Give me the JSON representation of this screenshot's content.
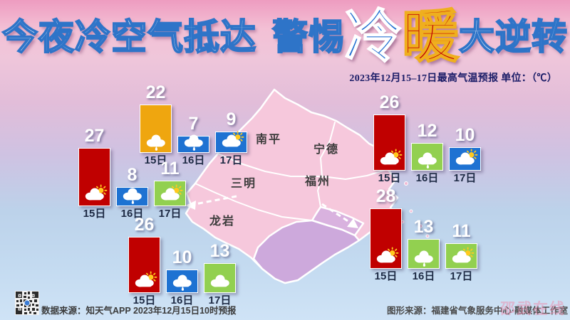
{
  "title": {
    "part1": "今夜冷空气抵达",
    "part2": "警惕",
    "part3": "冷",
    "part4": "暖",
    "part5": "大逆转"
  },
  "subtitle": "2023年12月15–17日最高气温预报  单位：（℃）",
  "map": {
    "region_labels": [
      "南平",
      "宁德",
      "三明",
      "福州",
      "龙岩"
    ]
  },
  "chart_data": [
    {
      "type": "bar",
      "position": "upper-left",
      "categories": [
        "15日",
        "16日",
        "17日"
      ],
      "values": [
        22,
        7,
        9
      ],
      "weather_icons": [
        "rain",
        "rain",
        "partly-sunny"
      ],
      "bar_colors": [
        "#efa60f",
        "#1e72d2",
        "#1e72d2"
      ],
      "unit": "℃"
    },
    {
      "type": "bar",
      "position": "mid-left",
      "categories": [
        "15日",
        "16日",
        "17日"
      ],
      "values": [
        27,
        8,
        11
      ],
      "weather_icons": [
        "partly-sunny",
        "rain",
        "partly-sunny"
      ],
      "bar_colors": [
        "#c00000",
        "#1e72d2",
        "#92d050"
      ],
      "unit": "℃"
    },
    {
      "type": "bar",
      "position": "lower-left",
      "categories": [
        "15日",
        "16日",
        "17日"
      ],
      "values": [
        26,
        10,
        13
      ],
      "weather_icons": [
        "partly-sunny",
        "rain",
        "cloudy"
      ],
      "bar_colors": [
        "#c00000",
        "#1e72d2",
        "#92d050"
      ],
      "unit": "℃"
    },
    {
      "type": "bar",
      "position": "upper-right",
      "categories": [
        "15日",
        "16日",
        "17日"
      ],
      "values": [
        26,
        12,
        10
      ],
      "weather_icons": [
        "partly-sunny",
        "rain",
        "partly-sunny"
      ],
      "bar_colors": [
        "#c00000",
        "#92d050",
        "#1e72d2"
      ],
      "unit": "℃"
    },
    {
      "type": "bar",
      "position": "lower-right",
      "categories": [
        "15日",
        "16日",
        "17日"
      ],
      "values": [
        28,
        13,
        11
      ],
      "weather_icons": [
        "partly-sunny",
        "rain",
        "partly-sunny"
      ],
      "bar_colors": [
        "#c00000",
        "#92d050",
        "#92d050"
      ],
      "unit": "℃"
    }
  ],
  "footer": {
    "data_source": "数据来源：知天气APP  2023年12月15日10时预报",
    "graphic_source": "图形来源：福建省气象服务中心·融媒体工作室",
    "watermark": "邵武在线"
  },
  "colors": {
    "hot_red": "#c00000",
    "warm_orange": "#efa60f",
    "cool_blue": "#1e72d2",
    "mild_green": "#92d050",
    "title_blue": "#1c6bd0",
    "title_red": "#c00000",
    "map_pink": "#f6c8dc",
    "map_purple": "#cda9dc"
  }
}
